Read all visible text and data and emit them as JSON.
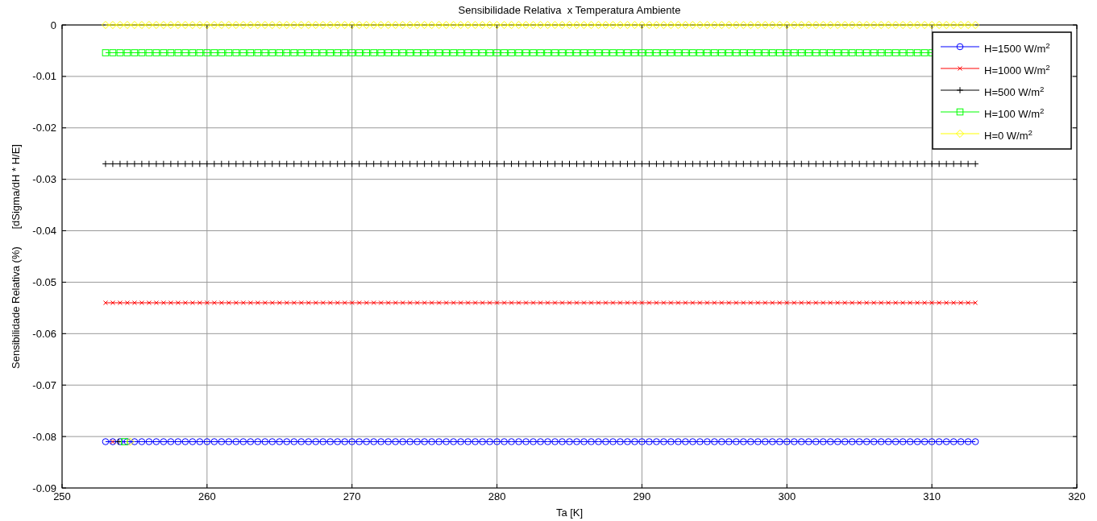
{
  "chart_data": {
    "type": "line",
    "title": "Sensibilidade Relativa  x Temperatura Ambiente",
    "xlabel": "Ta [K]",
    "ylabel": "Sensibilidade Relativa (%)      [dSigma/dH * H/E]",
    "x": [
      253,
      253.5,
      254,
      254.5,
      255,
      255.5,
      256,
      256.5,
      257,
      257.5,
      258,
      258.5,
      259,
      259.5,
      260,
      260.5,
      261,
      261.5,
      262,
      262.5,
      263,
      263.5,
      264,
      264.5,
      265,
      265.5,
      266,
      266.5,
      267,
      267.5,
      268,
      268.5,
      269,
      269.5,
      270,
      270.5,
      271,
      271.5,
      272,
      272.5,
      273,
      273.5,
      274,
      274.5,
      275,
      275.5,
      276,
      276.5,
      277,
      277.5,
      278,
      278.5,
      279,
      279.5,
      280,
      280.5,
      281,
      281.5,
      282,
      282.5,
      283,
      283.5,
      284,
      284.5,
      285,
      285.5,
      286,
      286.5,
      287,
      287.5,
      288,
      288.5,
      289,
      289.5,
      290,
      290.5,
      291,
      291.5,
      292,
      292.5,
      293,
      293.5,
      294,
      294.5,
      295,
      295.5,
      296,
      296.5,
      297,
      297.5,
      298,
      298.5,
      299,
      299.5,
      300,
      300.5,
      301,
      301.5,
      302,
      302.5,
      303,
      303.5,
      304,
      304.5,
      305,
      305.5,
      306,
      306.5,
      307,
      307.5,
      308,
      308.5,
      309,
      309.5,
      310,
      310.5,
      311,
      311.5,
      312,
      312.5,
      313
    ],
    "series": [
      {
        "name": "H=1500 W/m$^{2}$",
        "color": "#0000ff",
        "marker": "circle",
        "values": [
          -0.081,
          -0.081,
          -0.081,
          -0.081,
          -0.081,
          -0.081,
          -0.081,
          -0.081,
          -0.081,
          -0.081,
          -0.081,
          -0.081,
          -0.081,
          -0.081,
          -0.081,
          -0.081,
          -0.081,
          -0.081,
          -0.081,
          -0.081,
          -0.081,
          -0.081,
          -0.081,
          -0.081,
          -0.081,
          -0.081,
          -0.081,
          -0.081,
          -0.081,
          -0.081,
          -0.081,
          -0.081,
          -0.081,
          -0.081,
          -0.081,
          -0.081,
          -0.081,
          -0.081,
          -0.081,
          -0.081,
          -0.081,
          -0.081,
          -0.081,
          -0.081,
          -0.081,
          -0.081,
          -0.081,
          -0.081,
          -0.081,
          -0.081,
          -0.081,
          -0.081,
          -0.081,
          -0.081,
          -0.081,
          -0.081,
          -0.081,
          -0.081,
          -0.081,
          -0.081,
          -0.081,
          -0.081,
          -0.081,
          -0.081,
          -0.081,
          -0.081,
          -0.081,
          -0.081,
          -0.081,
          -0.081,
          -0.081,
          -0.081,
          -0.081,
          -0.081,
          -0.081,
          -0.081,
          -0.081,
          -0.081,
          -0.081,
          -0.081,
          -0.081,
          -0.081,
          -0.081,
          -0.081,
          -0.081,
          -0.081,
          -0.081,
          -0.081,
          -0.081,
          -0.081,
          -0.081,
          -0.081,
          -0.081,
          -0.081,
          -0.081,
          -0.081,
          -0.081,
          -0.081,
          -0.081,
          -0.081,
          -0.081,
          -0.081,
          -0.081,
          -0.081,
          -0.081,
          -0.081,
          -0.081,
          -0.081,
          -0.081,
          -0.081,
          -0.081,
          -0.081,
          -0.081,
          -0.081,
          -0.081,
          -0.081,
          -0.081,
          -0.081,
          -0.081,
          -0.081,
          -0.081
        ]
      },
      {
        "name": "H=1000 W/m$^{2}$",
        "color": "#ff0000",
        "marker": "x",
        "values": [
          -0.054,
          -0.054,
          -0.054,
          -0.054,
          -0.054,
          -0.054,
          -0.054,
          -0.054,
          -0.054,
          -0.054,
          -0.054,
          -0.054,
          -0.054,
          -0.054,
          -0.054,
          -0.054,
          -0.054,
          -0.054,
          -0.054,
          -0.054,
          -0.054,
          -0.054,
          -0.054,
          -0.054,
          -0.054,
          -0.054,
          -0.054,
          -0.054,
          -0.054,
          -0.054,
          -0.054,
          -0.054,
          -0.054,
          -0.054,
          -0.054,
          -0.054,
          -0.054,
          -0.054,
          -0.054,
          -0.054,
          -0.054,
          -0.054,
          -0.054,
          -0.054,
          -0.054,
          -0.054,
          -0.054,
          -0.054,
          -0.054,
          -0.054,
          -0.054,
          -0.054,
          -0.054,
          -0.054,
          -0.054,
          -0.054,
          -0.054,
          -0.054,
          -0.054,
          -0.054,
          -0.054,
          -0.054,
          -0.054,
          -0.054,
          -0.054,
          -0.054,
          -0.054,
          -0.054,
          -0.054,
          -0.054,
          -0.054,
          -0.054,
          -0.054,
          -0.054,
          -0.054,
          -0.054,
          -0.054,
          -0.054,
          -0.054,
          -0.054,
          -0.054,
          -0.054,
          -0.054,
          -0.054,
          -0.054,
          -0.054,
          -0.054,
          -0.054,
          -0.054,
          -0.054,
          -0.054,
          -0.054,
          -0.054,
          -0.054,
          -0.054,
          -0.054,
          -0.054,
          -0.054,
          -0.054,
          -0.054,
          -0.054,
          -0.054,
          -0.054,
          -0.054,
          -0.054,
          -0.054,
          -0.054,
          -0.054,
          -0.054,
          -0.054,
          -0.054,
          -0.054,
          -0.054,
          -0.054,
          -0.054,
          -0.054,
          -0.054,
          -0.054,
          -0.054,
          -0.054,
          -0.054
        ]
      },
      {
        "name": "H=500 W/m$^{2}$",
        "color": "#000000",
        "marker": "cross",
        "values": [
          -0.027,
          -0.027,
          -0.027,
          -0.027,
          -0.027,
          -0.027,
          -0.027,
          -0.027,
          -0.027,
          -0.027,
          -0.027,
          -0.027,
          -0.027,
          -0.027,
          -0.027,
          -0.027,
          -0.027,
          -0.027,
          -0.027,
          -0.027,
          -0.027,
          -0.027,
          -0.027,
          -0.027,
          -0.027,
          -0.027,
          -0.027,
          -0.027,
          -0.027,
          -0.027,
          -0.027,
          -0.027,
          -0.027,
          -0.027,
          -0.027,
          -0.027,
          -0.027,
          -0.027,
          -0.027,
          -0.027,
          -0.027,
          -0.027,
          -0.027,
          -0.027,
          -0.027,
          -0.027,
          -0.027,
          -0.027,
          -0.027,
          -0.027,
          -0.027,
          -0.027,
          -0.027,
          -0.027,
          -0.027,
          -0.027,
          -0.027,
          -0.027,
          -0.027,
          -0.027,
          -0.027,
          -0.027,
          -0.027,
          -0.027,
          -0.027,
          -0.027,
          -0.027,
          -0.027,
          -0.027,
          -0.027,
          -0.027,
          -0.027,
          -0.027,
          -0.027,
          -0.027,
          -0.027,
          -0.027,
          -0.027,
          -0.027,
          -0.027,
          -0.027,
          -0.027,
          -0.027,
          -0.027,
          -0.027,
          -0.027,
          -0.027,
          -0.027,
          -0.027,
          -0.027,
          -0.027,
          -0.027,
          -0.027,
          -0.027,
          -0.027,
          -0.027,
          -0.027,
          -0.027,
          -0.027,
          -0.027,
          -0.027,
          -0.027,
          -0.027,
          -0.027,
          -0.027,
          -0.027,
          -0.027,
          -0.027,
          -0.027,
          -0.027,
          -0.027,
          -0.027,
          -0.027,
          -0.027,
          -0.027,
          -0.027,
          -0.027,
          -0.027,
          -0.027,
          -0.027,
          -0.027
        ]
      },
      {
        "name": "H=100 W/m$^{2}$",
        "color": "#00ff00",
        "marker": "square",
        "values": [
          -0.0054,
          -0.0054,
          -0.0054,
          -0.0054,
          -0.0054,
          -0.0054,
          -0.0054,
          -0.0054,
          -0.0054,
          -0.0054,
          -0.0054,
          -0.0054,
          -0.0054,
          -0.0054,
          -0.0054,
          -0.0054,
          -0.0054,
          -0.0054,
          -0.0054,
          -0.0054,
          -0.0054,
          -0.0054,
          -0.0054,
          -0.0054,
          -0.0054,
          -0.0054,
          -0.0054,
          -0.0054,
          -0.0054,
          -0.0054,
          -0.0054,
          -0.0054,
          -0.0054,
          -0.0054,
          -0.0054,
          -0.0054,
          -0.0054,
          -0.0054,
          -0.0054,
          -0.0054,
          -0.0054,
          -0.0054,
          -0.0054,
          -0.0054,
          -0.0054,
          -0.0054,
          -0.0054,
          -0.0054,
          -0.0054,
          -0.0054,
          -0.0054,
          -0.0054,
          -0.0054,
          -0.0054,
          -0.0054,
          -0.0054,
          -0.0054,
          -0.0054,
          -0.0054,
          -0.0054,
          -0.0054,
          -0.0054,
          -0.0054,
          -0.0054,
          -0.0054,
          -0.0054,
          -0.0054,
          -0.0054,
          -0.0054,
          -0.0054,
          -0.0054,
          -0.0054,
          -0.0054,
          -0.0054,
          -0.0054,
          -0.0054,
          -0.0054,
          -0.0054,
          -0.0054,
          -0.0054,
          -0.0054,
          -0.0054,
          -0.0054,
          -0.0054,
          -0.0054,
          -0.0054,
          -0.0054,
          -0.0054,
          -0.0054,
          -0.0054,
          -0.0054,
          -0.0054,
          -0.0054,
          -0.0054,
          -0.0054,
          -0.0054,
          -0.0054,
          -0.0054,
          -0.0054,
          -0.0054,
          -0.0054,
          -0.0054,
          -0.0054,
          -0.0054,
          -0.0054,
          -0.0054,
          -0.0054,
          -0.0054,
          -0.0054,
          -0.0054,
          -0.0054,
          -0.0054,
          -0.0054,
          -0.0054,
          -0.0054,
          null,
          null,
          null,
          null,
          null,
          null
        ]
      },
      {
        "name": "H=0 W/m$^{2}$",
        "color": "#ffff00",
        "marker": "diamond",
        "values": [
          0,
          0,
          0,
          0,
          0,
          0,
          0,
          0,
          0,
          0,
          0,
          0,
          0,
          0,
          0,
          0,
          0,
          0,
          0,
          0,
          0,
          0,
          0,
          0,
          0,
          0,
          0,
          0,
          0,
          0,
          0,
          0,
          0,
          0,
          0,
          0,
          0,
          0,
          0,
          0,
          0,
          0,
          0,
          0,
          0,
          0,
          0,
          0,
          0,
          0,
          0,
          0,
          0,
          0,
          0,
          0,
          0,
          0,
          0,
          0,
          0,
          0,
          0,
          0,
          0,
          0,
          0,
          0,
          0,
          0,
          0,
          0,
          0,
          0,
          0,
          0,
          0,
          0,
          0,
          0,
          0,
          0,
          0,
          0,
          0,
          0,
          0,
          0,
          0,
          0,
          0,
          0,
          0,
          0,
          0,
          0,
          0,
          0,
          0,
          0,
          0,
          0,
          0,
          0,
          0,
          0,
          0,
          0,
          0,
          0,
          0,
          0,
          0,
          0,
          0,
          0,
          0,
          0,
          0,
          0,
          0
        ]
      },
      {
        "type": "scatter",
        "color": "#ff0000",
        "marker": "x",
        "x": [
          253.5
        ],
        "values": [
          -0.081
        ]
      },
      {
        "type": "scatter",
        "color": "#000000",
        "marker": "cross",
        "x": [
          253.9
        ],
        "values": [
          -0.081
        ]
      },
      {
        "type": "scatter",
        "color": "#00ff00",
        "marker": "square",
        "x": [
          254.3
        ],
        "values": [
          -0.081
        ]
      },
      {
        "type": "scatter",
        "color": "#ffff00",
        "marker": "diamond",
        "x": [
          254.7
        ],
        "values": [
          -0.081
        ]
      }
    ],
    "xlim": [
      250,
      320
    ],
    "xticks": [
      250,
      260,
      270,
      280,
      290,
      300,
      310,
      320
    ],
    "ylim": [
      -0.09,
      0
    ],
    "yticks": [
      -0.09,
      -0.08,
      -0.07,
      -0.06,
      -0.05,
      -0.04,
      -0.03,
      -0.02,
      -0.01,
      0
    ],
    "grid": true,
    "legend": "top right",
    "line_style": "solid"
  }
}
